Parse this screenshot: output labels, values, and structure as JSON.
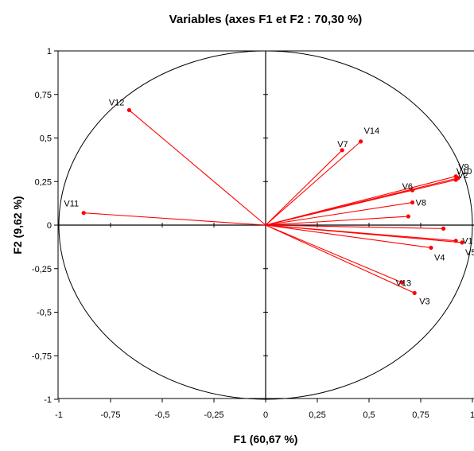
{
  "chart_data": {
    "type": "scatter",
    "subtype": "correlation-circle",
    "title": "Variables (axes F1 et F2 : 70,30 %)",
    "xlabel": "F1 (60,67 %)",
    "ylabel": "F2 (9,62 %)",
    "xlim": [
      -1,
      1
    ],
    "ylim": [
      -1,
      1
    ],
    "grid": false,
    "unit_circle": true,
    "x_ticks": [
      -1,
      -0.75,
      -0.5,
      -0.25,
      0,
      0.25,
      0.5,
      0.75,
      1
    ],
    "x_tick_labels": [
      "-1",
      "-0,75",
      "-0,5",
      "-0,25",
      "0",
      "0,25",
      "0,5",
      "0,75",
      "1"
    ],
    "y_ticks": [
      1,
      0.75,
      0.5,
      0.25,
      0,
      -0.25,
      -0.5,
      -0.75,
      -1
    ],
    "y_tick_labels": [
      "1",
      "0,75",
      "0,5",
      "0,25",
      "0",
      "-0,25",
      "-0,5",
      "-0,75",
      "-1"
    ],
    "vector_color": "#ff0000",
    "series": [
      {
        "name": "",
        "points": [
          {
            "label": "V1",
            "x": 0.92,
            "y": -0.09
          },
          {
            "label": "V2",
            "x": 0.92,
            "y": 0.26
          },
          {
            "label": "V3",
            "x": 0.72,
            "y": -0.39
          },
          {
            "label": "V4",
            "x": 0.8,
            "y": -0.13
          },
          {
            "label": "V5",
            "x": 0.95,
            "y": -0.1
          },
          {
            "label": "V6",
            "x": 0.71,
            "y": 0.2
          },
          {
            "label": "V7",
            "x": 0.37,
            "y": 0.43
          },
          {
            "label": "V8",
            "x": 0.71,
            "y": 0.13
          },
          {
            "label": "V9",
            "x": 0.92,
            "y": 0.28
          },
          {
            "label": "V10",
            "x": 0.93,
            "y": 0.27
          },
          {
            "label": "V11",
            "x": -0.88,
            "y": 0.07
          },
          {
            "label": "V12",
            "x": -0.66,
            "y": 0.66
          },
          {
            "label": "V13",
            "x": 0.66,
            "y": -0.33
          },
          {
            "label": "V14",
            "x": 0.46,
            "y": 0.48
          },
          {
            "label": "",
            "x": 0.69,
            "y": 0.05
          },
          {
            "label": "",
            "x": 0.86,
            "y": -0.02
          }
        ]
      }
    ]
  }
}
